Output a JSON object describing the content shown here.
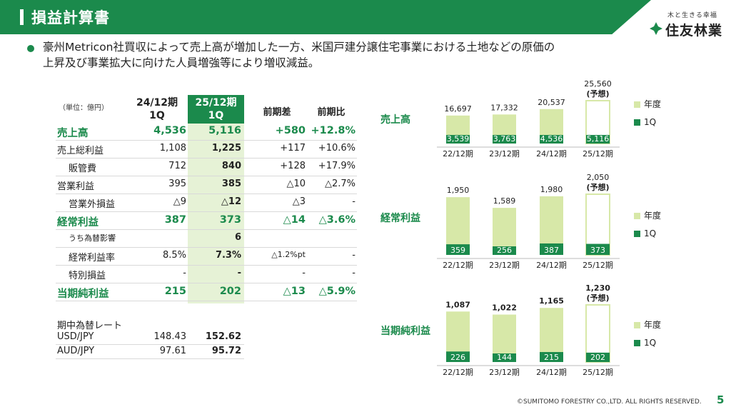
{
  "header": {
    "title": "損益計算書"
  },
  "logo": {
    "tagline": "木と生きる幸福",
    "name": "住友林業"
  },
  "bullet": {
    "line1": "豪州Metricon社買収によって売上高が増加した一方、米国戸建分譲住宅事業における土地などの原価の",
    "line2": "上昇及び事業拡大に向けた人員増強等により増収減益。"
  },
  "table": {
    "unit": "（単位：億円）",
    "col_prev": [
      "24/12期",
      "1Q"
    ],
    "col_curr": [
      "25/12期",
      "1Q"
    ],
    "col_diff": "前期差",
    "col_ratio": "前期比",
    "rows": [
      {
        "label": "売上高",
        "prev": "4,536",
        "curr": "5,116",
        "diff": "+580",
        "ratio": "+12.8%",
        "strong": true
      },
      {
        "label": "売上総利益",
        "prev": "1,108",
        "curr": "1,225",
        "diff": "+117",
        "ratio": "+10.6%"
      },
      {
        "label": "販管費",
        "prev": "712",
        "curr": "840",
        "diff": "+128",
        "ratio": "+17.9%",
        "indent": true
      },
      {
        "label": "営業利益",
        "prev": "395",
        "curr": "385",
        "diff": "△10",
        "ratio": "△2.7%"
      },
      {
        "label": "営業外損益",
        "prev": "△9",
        "curr": "△12",
        "diff": "△3",
        "ratio": "-",
        "indent": true
      },
      {
        "label": "経常利益",
        "prev": "387",
        "curr": "373",
        "diff": "△14",
        "ratio": "△3.6%",
        "strong": true
      },
      {
        "label": "うち為替影響",
        "prev": "",
        "curr": "6",
        "diff": "",
        "ratio": "",
        "indent": true,
        "small": true
      },
      {
        "label": "経常利益率",
        "prev": "8.5%",
        "curr": "7.3%",
        "diff": "△1.2%pt",
        "ratio": "-",
        "indent": true
      },
      {
        "label": "特別損益",
        "prev": "-",
        "curr": "-",
        "diff": "-",
        "ratio": "-",
        "indent": true
      },
      {
        "label": "当期純利益",
        "prev": "215",
        "curr": "202",
        "diff": "△13",
        "ratio": "△5.9%",
        "strong": true
      }
    ]
  },
  "rates": {
    "title": "期中為替レート",
    "rows": [
      {
        "label": "USD/JPY",
        "prev": "148.43",
        "curr": "152.62"
      },
      {
        "label": "AUD/JPY",
        "prev": "97.61",
        "curr": "95.72"
      }
    ]
  },
  "chart_data": [
    {
      "type": "bar",
      "label": "売上高",
      "categories": [
        "22/12期",
        "23/12期",
        "24/12期",
        "25/12期"
      ],
      "series": [
        {
          "name": "年度",
          "values": [
            16697,
            17332,
            20537,
            25560
          ]
        },
        {
          "name": "1Q",
          "values": [
            3539,
            3763,
            4536,
            5116
          ]
        }
      ],
      "annual_labels": [
        "16,697",
        "17,332",
        "20,537",
        "25,560"
      ],
      "q1_labels": [
        "3,539",
        "3,763",
        "4,536",
        "5,116"
      ],
      "forecast_note": "(予想)"
    },
    {
      "type": "bar",
      "label": "経常利益",
      "categories": [
        "22/12期",
        "23/12期",
        "24/12期",
        "25/12期"
      ],
      "series": [
        {
          "name": "年度",
          "values": [
            1950,
            1589,
            1980,
            2050
          ]
        },
        {
          "name": "1Q",
          "values": [
            359,
            256,
            387,
            373
          ]
        }
      ],
      "annual_labels": [
        "1,950",
        "1,589",
        "1,980",
        "2,050"
      ],
      "q1_labels": [
        "359",
        "256",
        "387",
        "373"
      ],
      "forecast_note": "(予想)"
    },
    {
      "type": "bar",
      "label": "当期純利益",
      "categories": [
        "22/12期",
        "23/12期",
        "24/12期",
        "25/12期"
      ],
      "series": [
        {
          "name": "年度",
          "values": [
            1087,
            1022,
            1165,
            1230
          ]
        },
        {
          "name": "1Q",
          "values": [
            226,
            144,
            215,
            202
          ]
        }
      ],
      "annual_labels": [
        "1,087",
        "1,022",
        "1,165",
        "1,230"
      ],
      "q1_labels": [
        "226",
        "144",
        "215",
        "202"
      ],
      "forecast_note": "(予想)"
    }
  ],
  "colors": {
    "brand_green": "#1b8a4c",
    "annual_bar": "#d7e8a8",
    "q1_bar": "#1b8a4c",
    "highlight": "#e6f2d6"
  },
  "footer": {
    "copyright": "©SUMITOMO FORESTRY CO.,LTD. ALL RIGHTS RESERVED.",
    "page": "5"
  }
}
